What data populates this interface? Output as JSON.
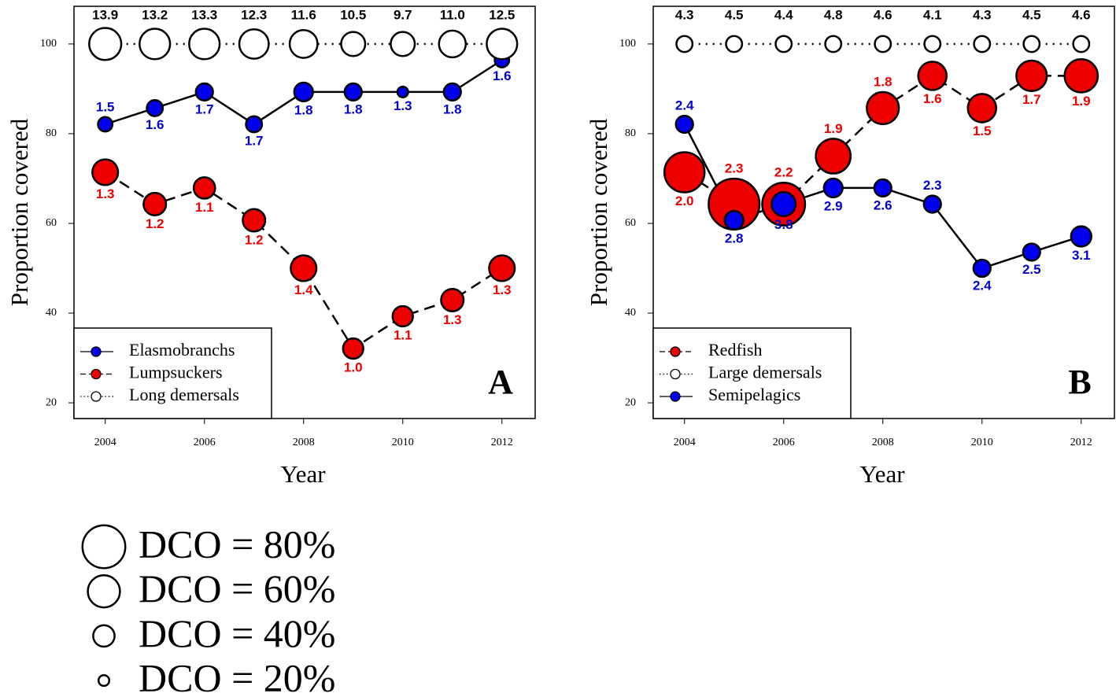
{
  "chart_data": [
    {
      "type": "bubble",
      "panel_label": "A",
      "x_label": "Year",
      "y_label": "Proportion covered",
      "x": [
        2004,
        2005,
        2006,
        2007,
        2008,
        2009,
        2010,
        2011,
        2012
      ],
      "xlim": [
        2003.37,
        2012.67
      ],
      "xticks": [
        2004,
        2006,
        2008,
        2010,
        2012
      ],
      "ylim": [
        16.5,
        108.4
      ],
      "yticks": [
        20,
        40,
        60,
        80,
        100
      ],
      "legend": "lower left",
      "series": [
        {
          "name": "Elasmobranchs",
          "color": "#0000ee",
          "label_color": "#0000cc",
          "line": "solid",
          "values": [
            82.1,
            85.7,
            89.3,
            82.1,
            89.3,
            89.3,
            89.3,
            89.3,
            96.4
          ],
          "sizes": [
            27,
            30,
            32,
            30,
            35,
            32,
            20,
            32,
            27
          ],
          "point_labels": [
            "1.5",
            "1.6",
            "1.7",
            "1.7",
            "1.8",
            "1.8",
            "1.3",
            "1.8",
            "1.6"
          ]
        },
        {
          "name": "Lumpsuckers",
          "color": "#ee0000",
          "label_color": "#ee0000",
          "line": "dashed",
          "values": [
            71.4,
            64.3,
            67.9,
            60.7,
            50,
            32.1,
            39.3,
            42.9,
            50
          ],
          "sizes": [
            48,
            42,
            40,
            42,
            48,
            38,
            38,
            42,
            48
          ],
          "point_labels": [
            "1.3",
            "1.2",
            "1.1",
            "1.2",
            "1.4",
            "1.0",
            "1.1",
            "1.3",
            "1.3"
          ]
        },
        {
          "name": "Long demersals",
          "color": "#ffffff",
          "label_color": "#000000",
          "line": "dotted",
          "values": [
            100,
            100,
            100,
            100,
            100,
            100,
            100,
            100,
            100
          ],
          "sizes": [
            60,
            57,
            57,
            55,
            52,
            45,
            45,
            50,
            57
          ],
          "point_labels": [
            "13.9",
            "13.2",
            "13.3",
            "12.3",
            "11.6",
            "10.5",
            "9.7",
            "11.0",
            "12.5"
          ]
        }
      ]
    },
    {
      "type": "bubble",
      "panel_label": "B",
      "x_label": "Year",
      "y_label": "Proportion covered",
      "x": [
        2004,
        2005,
        2006,
        2007,
        2008,
        2009,
        2010,
        2011,
        2012
      ],
      "xlim": [
        2003.37,
        2012.67
      ],
      "xticks": [
        2004,
        2006,
        2008,
        2010,
        2012
      ],
      "ylim": [
        16.5,
        108.4
      ],
      "yticks": [
        20,
        40,
        60,
        80,
        100
      ],
      "legend": "lower left",
      "series": [
        {
          "name": "Redfish",
          "color": "#ee0000",
          "label_color": "#ee0000",
          "line": "dashed",
          "values": [
            71.4,
            64.3,
            64.3,
            75,
            85.7,
            92.9,
            85.7,
            92.9,
            92.9
          ],
          "sizes": [
            75,
            95,
            80,
            65,
            60,
            53,
            53,
            57,
            62
          ],
          "point_labels": [
            "2.0",
            "2.3",
            "2.2",
            "1.9",
            "1.8",
            "1.6",
            "1.5",
            "1.7",
            "1.9"
          ]
        },
        {
          "name": "Large demersals",
          "color": "#ffffff",
          "label_color": "#000000",
          "line": "dotted",
          "values": [
            100,
            100,
            100,
            100,
            100,
            100,
            100,
            100,
            100
          ],
          "sizes": [
            30,
            30,
            30,
            30,
            30,
            30,
            30,
            30,
            30
          ],
          "point_labels": [
            "4.3",
            "4.5",
            "4.4",
            "4.8",
            "4.6",
            "4.1",
            "4.3",
            "4.5",
            "4.6"
          ]
        },
        {
          "name": "Semipelagics",
          "color": "#0000ee",
          "label_color": "#0000cc",
          "line": "solid",
          "values": [
            82.1,
            60.7,
            64.3,
            67.9,
            67.9,
            64.3,
            50,
            53.6,
            57.1
          ],
          "sizes": [
            32,
            35,
            45,
            35,
            32,
            32,
            32,
            32,
            38
          ],
          "point_labels": [
            "2.4",
            "2.8",
            "3.8",
            "2.9",
            "2.6",
            "2.3",
            "2.4",
            "2.5",
            "3.1"
          ]
        }
      ]
    }
  ],
  "size_legend": {
    "sizes": [
      80,
      60,
      40,
      20
    ],
    "labels": [
      "DCO = 80%",
      "DCO = 60%",
      "DCO = 40%",
      "DCO = 20%"
    ]
  }
}
